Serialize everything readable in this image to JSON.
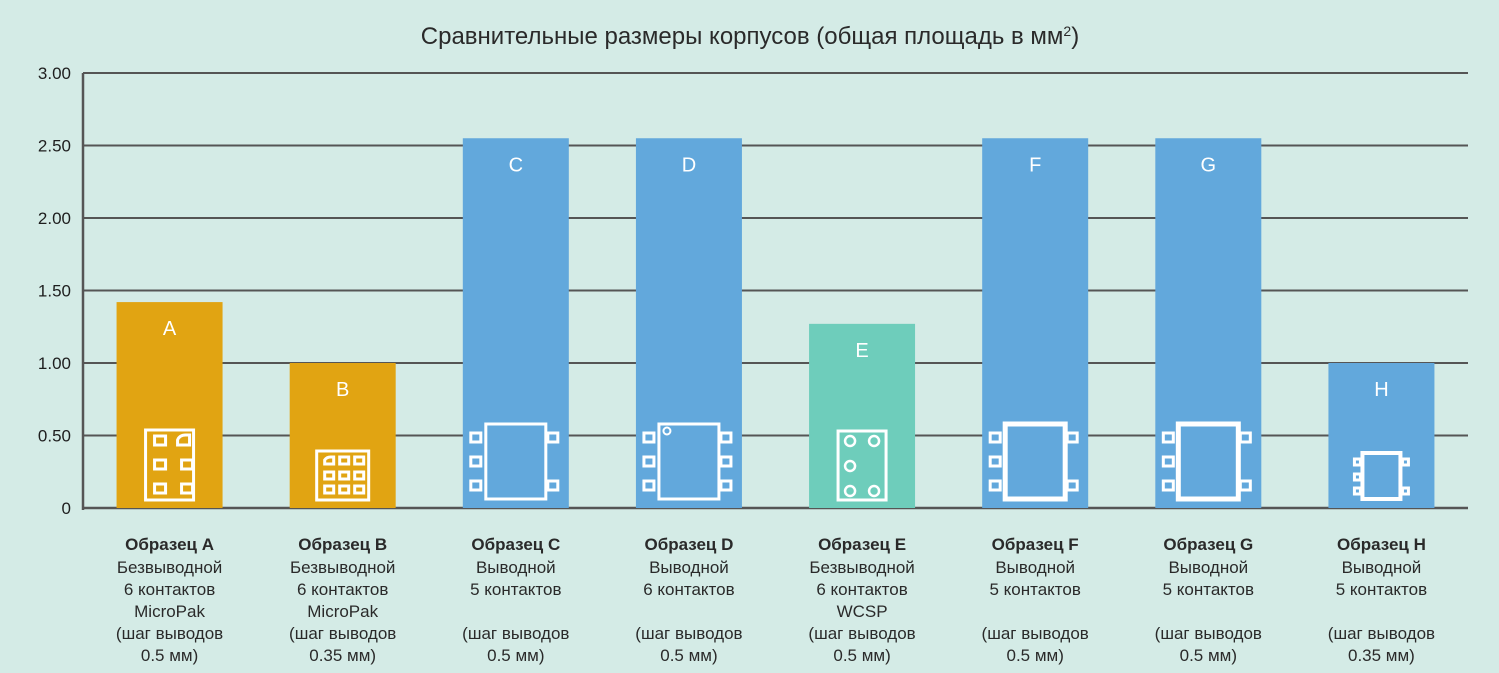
{
  "chart_data": {
    "type": "bar",
    "title": "Сравнительные размеры корпусов (общая площадь в мм",
    "title_sup": "2",
    "title_end": ")",
    "ylim": [
      0,
      3
    ],
    "yticks": [
      "0",
      "0.50",
      "1.00",
      "1.50",
      "2.00",
      "2.50",
      "3.00"
    ],
    "grid": true,
    "bars": [
      {
        "letter": "A",
        "value": 1.42,
        "color": "#e1a412",
        "icon": "micropak-6pin-icon",
        "name": "Образец A",
        "lines": [
          "Безвыводной",
          "6 контактов",
          "MicroPak",
          "(шаг выводов",
          "0.5 мм)"
        ]
      },
      {
        "letter": "B",
        "value": 1.0,
        "color": "#e1a412",
        "icon": "micropak-6pin-small-icon",
        "name": "Образец B",
        "lines": [
          "Безвыводной",
          "6 контактов",
          "MicroPak",
          "(шаг выводов",
          "0.35 мм)"
        ]
      },
      {
        "letter": "C",
        "value": 2.55,
        "color": "#62a8dc",
        "icon": "leaded-5pin-icon",
        "name": "Образец C",
        "lines": [
          "Выводной",
          "5 контактов",
          "",
          "(шаг выводов",
          "0.5 мм)"
        ]
      },
      {
        "letter": "D",
        "value": 2.55,
        "color": "#62a8dc",
        "icon": "leaded-6pin-icon",
        "name": "Образец D",
        "lines": [
          "Выводной",
          "6 контактов",
          "",
          "(шаг выводов",
          "0.5 мм)"
        ]
      },
      {
        "letter": "E",
        "value": 1.27,
        "color": "#6ecdbb",
        "icon": "wcsp-6ball-icon",
        "name": "Образец E",
        "lines": [
          "Безвыводной",
          "6 контактов",
          "WCSP",
          "(шаг выводов",
          "0.5 мм)"
        ]
      },
      {
        "letter": "F",
        "value": 2.55,
        "color": "#62a8dc",
        "icon": "leaded-5pin-icon",
        "name": "Образец F",
        "lines": [
          "Выводной",
          "5 контактов",
          "",
          "(шаг выводов",
          "0.5 мм)"
        ]
      },
      {
        "letter": "G",
        "value": 2.55,
        "color": "#62a8dc",
        "icon": "leaded-5pin-icon",
        "name": "Образец G",
        "lines": [
          "Выводной",
          "5 контактов",
          "",
          "(шаг выводов",
          "0.5 мм)"
        ]
      },
      {
        "letter": "H",
        "value": 1.0,
        "color": "#62a8dc",
        "icon": "leaded-5pin-small-icon",
        "name": "Образец H",
        "lines": [
          "Выводной",
          "5 контактов",
          "",
          "(шаг выводов",
          "0.35 мм)"
        ]
      }
    ],
    "colors": {
      "background": "#d4ebe6",
      "grid": "#555555",
      "axis": "#555555",
      "text": "#2a2a2a"
    }
  }
}
